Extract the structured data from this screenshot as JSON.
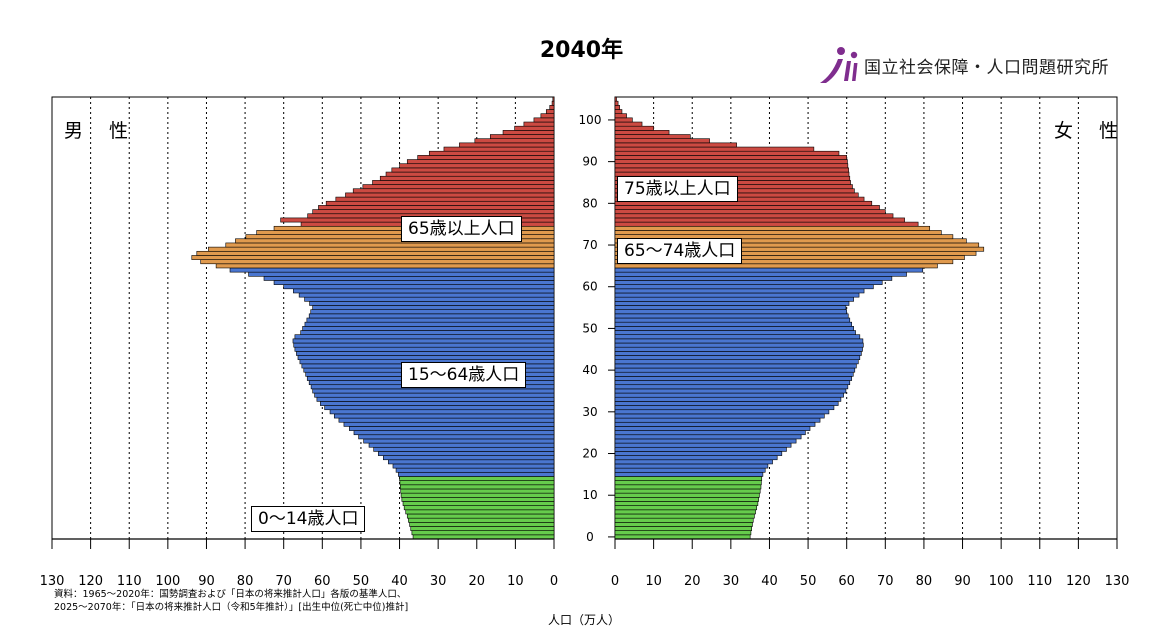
{
  "title": "2040年",
  "logo": {
    "text": "国立社会保障・人口問題研究所",
    "icon": "ipss-logo-icon"
  },
  "labels": {
    "male": "男 性",
    "female": "女 性",
    "g65_male": "65歳以上人口",
    "g15_64": "15～64歳人口",
    "g0_14": "0～14歳人口",
    "g75_female": "75歳以上人口",
    "g65_74_female": "65～74歳人口"
  },
  "source": {
    "line1": "資料：1965～2020年：国勢調査および「日本の将来推計人口」各版の基準人口、",
    "line2": "2025～2070年：「日本の将来推計人口（令和5年推計）」[出生中位(死亡中位)推計]"
  },
  "x_unit": "人口（万人）",
  "chart_data": {
    "type": "bar",
    "orientation": "horizontal-population-pyramid",
    "title": "2040年",
    "xlabel": "人口（万人）",
    "ylabel": "",
    "xlim": [
      0,
      130
    ],
    "ylim": [
      0,
      105
    ],
    "x_ticks": [
      0,
      10,
      20,
      30,
      40,
      50,
      60,
      70,
      80,
      90,
      100,
      110,
      120,
      130
    ],
    "age_ticks": [
      0,
      10,
      20,
      30,
      40,
      50,
      60,
      70,
      80,
      90,
      100
    ],
    "grid": true,
    "age_groups": [
      {
        "range": [
          0,
          14
        ],
        "color": "#66cc4c"
      },
      {
        "range": [
          15,
          64
        ],
        "color": "#4a76d0"
      },
      {
        "range": [
          65,
          74
        ],
        "color": "#e09a4e"
      },
      {
        "range": [
          75,
          105
        ],
        "color": "#cc4a42"
      }
    ],
    "series": [
      {
        "name": "男性",
        "ages": [
          0,
          1,
          2,
          3,
          4,
          5,
          6,
          7,
          8,
          9,
          10,
          11,
          12,
          13,
          14,
          15,
          16,
          17,
          18,
          19,
          20,
          21,
          22,
          23,
          24,
          25,
          26,
          27,
          28,
          29,
          30,
          31,
          32,
          33,
          34,
          35,
          36,
          37,
          38,
          39,
          40,
          41,
          42,
          43,
          44,
          45,
          46,
          47,
          48,
          49,
          50,
          51,
          52,
          53,
          54,
          55,
          56,
          57,
          58,
          59,
          60,
          61,
          62,
          63,
          64,
          65,
          66,
          67,
          68,
          69,
          70,
          71,
          72,
          73,
          74,
          75,
          76,
          77,
          78,
          79,
          80,
          81,
          82,
          83,
          84,
          85,
          86,
          87,
          88,
          89,
          90,
          91,
          92,
          93,
          94,
          95,
          96,
          97,
          98,
          99,
          100,
          101,
          102,
          103,
          104,
          105
        ],
        "values": [
          36.5,
          36.8,
          37.1,
          37.4,
          37.7,
          38.0,
          38.4,
          38.8,
          39.1,
          39.4,
          39.6,
          39.7,
          39.8,
          39.9,
          40.0,
          40.3,
          40.9,
          41.7,
          42.9,
          44.2,
          45.5,
          46.7,
          47.9,
          49.3,
          50.6,
          51.8,
          53.0,
          54.4,
          55.7,
          56.9,
          58.0,
          59.4,
          60.5,
          61.4,
          62.0,
          62.5,
          62.9,
          63.4,
          63.9,
          64.3,
          64.8,
          65.3,
          65.8,
          66.3,
          66.7,
          67.1,
          67.4,
          67.6,
          67.1,
          65.6,
          65.1,
          64.5,
          64.0,
          63.4,
          63.0,
          62.5,
          63.3,
          64.6,
          66.0,
          67.5,
          70.0,
          72.5,
          75.1,
          79.1,
          83.9,
          87.5,
          91.5,
          93.8,
          92.5,
          89.5,
          85.0,
          82.5,
          79.8,
          77.0,
          72.5,
          65.5,
          70.8,
          63.8,
          62.5,
          61.0,
          59.0,
          56.5,
          54.0,
          52.0,
          49.5,
          47.0,
          45.0,
          43.5,
          42.0,
          40.0,
          38.0,
          35.3,
          32.3,
          28.5,
          24.5,
          20.5,
          16.5,
          13.2,
          10.2,
          7.8,
          5.2,
          3.4,
          2.0,
          1.1,
          0.5,
          0.3
        ]
      },
      {
        "name": "女性",
        "ages": [
          0,
          1,
          2,
          3,
          4,
          5,
          6,
          7,
          8,
          9,
          10,
          11,
          12,
          13,
          14,
          15,
          16,
          17,
          18,
          19,
          20,
          21,
          22,
          23,
          24,
          25,
          26,
          27,
          28,
          29,
          30,
          31,
          32,
          33,
          34,
          35,
          36,
          37,
          38,
          39,
          40,
          41,
          42,
          43,
          44,
          45,
          46,
          47,
          48,
          49,
          50,
          51,
          52,
          53,
          54,
          55,
          56,
          57,
          58,
          59,
          60,
          61,
          62,
          63,
          64,
          65,
          66,
          67,
          68,
          69,
          70,
          71,
          72,
          73,
          74,
          75,
          76,
          77,
          78,
          79,
          80,
          81,
          82,
          83,
          84,
          85,
          86,
          87,
          88,
          89,
          90,
          91,
          92,
          93,
          94,
          95,
          96,
          97,
          98,
          99,
          100,
          101,
          102,
          103,
          104,
          105
        ],
        "values": [
          35.0,
          35.2,
          35.4,
          35.6,
          35.8,
          36.1,
          36.4,
          36.7,
          37.0,
          37.2,
          37.4,
          37.6,
          37.8,
          37.9,
          38.0,
          38.3,
          38.9,
          39.6,
          40.8,
          42.0,
          43.2,
          44.4,
          45.6,
          46.9,
          48.2,
          49.3,
          50.5,
          51.8,
          53.1,
          54.2,
          55.4,
          56.7,
          57.8,
          58.5,
          59.2,
          59.8,
          60.3,
          60.8,
          61.3,
          61.7,
          62.1,
          62.5,
          63.0,
          63.4,
          63.8,
          64.1,
          64.3,
          64.2,
          63.4,
          62.3,
          61.8,
          61.3,
          60.8,
          60.4,
          60.0,
          59.8,
          60.6,
          61.8,
          63.2,
          64.5,
          66.9,
          69.2,
          71.7,
          75.5,
          79.7,
          83.5,
          87.5,
          90.5,
          93.5,
          95.5,
          94.2,
          91.0,
          87.5,
          84.5,
          81.5,
          78.5,
          75.0,
          72.0,
          70.0,
          68.5,
          66.5,
          64.5,
          63.0,
          62.0,
          61.5,
          61.0,
          60.8,
          60.6,
          60.5,
          60.3,
          60.2,
          60.0,
          58.0,
          51.5,
          31.5,
          24.5,
          19.5,
          14.0,
          10.0,
          7.0,
          4.5,
          3.0,
          1.8,
          1.2,
          0.8,
          0.4
        ]
      }
    ]
  }
}
